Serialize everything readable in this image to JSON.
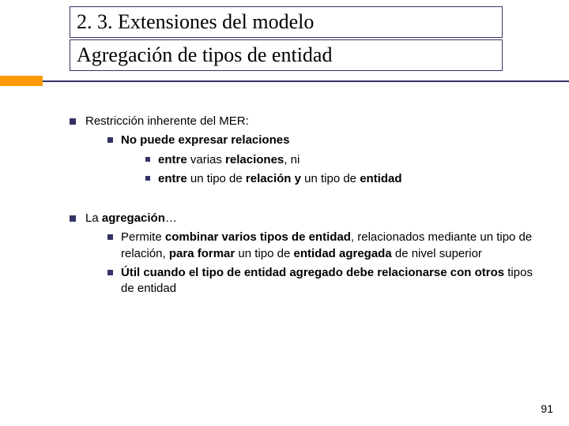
{
  "colors": {
    "accent_orange": "#ff9900",
    "accent_navy": "#333366",
    "text": "#000000",
    "background": "#ffffff"
  },
  "header": {
    "title": "2. 3. Extensiones del modelo",
    "subtitle": "Agregación de tipos de entidad",
    "title_fontsize": 26,
    "font_family": "Times New Roman"
  },
  "body": {
    "fontsize": 15,
    "items": [
      {
        "text": "Restricción inherente del MER:",
        "children": [
          {
            "html": "<b>No puede expresar relaciones</b>",
            "children": [
              {
                "html": "<b>entre</b> varias <b>relaciones</b>, ni"
              },
              {
                "html": "<b>entre</b> un tipo de <b>relación y</b> un tipo de <b>entidad</b>"
              }
            ]
          }
        ]
      },
      {
        "html": "La <b>agregación</b>…",
        "children": [
          {
            "html": "Permite <b>combinar varios tipos de entidad</b>, relacionados mediante un tipo de relación, <b>para formar</b> un tipo de <b>entidad agregada</b> de nivel superior"
          },
          {
            "html": "<b>Útil cuando el tipo de entidad agregado debe relacionarse con otros</b> tipos de entidad"
          }
        ]
      }
    ]
  },
  "page_number": "91"
}
